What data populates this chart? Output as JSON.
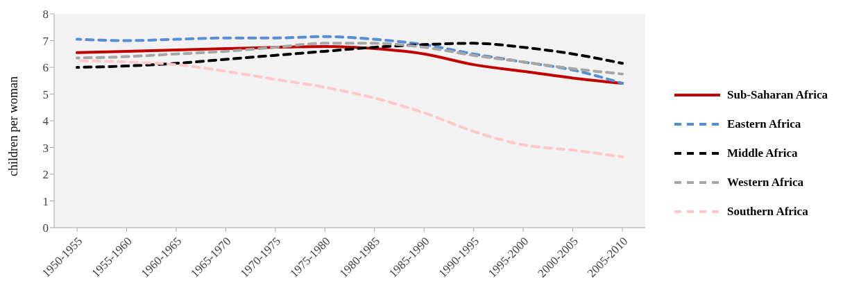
{
  "chart_data": {
    "type": "line",
    "ylabel": "children per woman",
    "categories": [
      "1950-1955",
      "1955-1960",
      "1960-1965",
      "1965-1970",
      "1970-1975",
      "1975-1980",
      "1980-1985",
      "1985-1990",
      "1990-1995",
      "1995-2000",
      "2000-2005",
      "2005-2010"
    ],
    "ylim": [
      0,
      8
    ],
    "yticks": [
      0,
      1,
      2,
      3,
      4,
      5,
      6,
      7,
      8
    ],
    "legend": "right",
    "marker": "none",
    "series": [
      {
        "name": "Sub-Saharan Africa",
        "color": "#c00000",
        "line_style": "solid",
        "values": [
          6.55,
          6.6,
          6.65,
          6.7,
          6.75,
          6.78,
          6.7,
          6.5,
          6.1,
          5.85,
          5.6,
          5.4
        ]
      },
      {
        "name": "Eastern Africa",
        "color": "#558ed5",
        "line_style": "dashed",
        "values": [
          7.05,
          7.0,
          7.05,
          7.1,
          7.1,
          7.15,
          7.05,
          6.85,
          6.5,
          6.2,
          5.9,
          5.4
        ]
      },
      {
        "name": "Middle Africa",
        "color": "#000000",
        "line_style": "dashed",
        "values": [
          6.0,
          6.05,
          6.15,
          6.3,
          6.45,
          6.6,
          6.75,
          6.85,
          6.9,
          6.75,
          6.5,
          6.15
        ]
      },
      {
        "name": "Western Africa",
        "color": "#a6a6a6",
        "line_style": "dashed",
        "values": [
          6.35,
          6.4,
          6.5,
          6.6,
          6.75,
          6.9,
          6.9,
          6.75,
          6.45,
          6.2,
          5.95,
          5.75
        ]
      },
      {
        "name": "Southern Africa",
        "color": "#ffc7c7",
        "line_style": "dashed",
        "values": [
          6.25,
          6.2,
          6.1,
          5.85,
          5.55,
          5.25,
          4.85,
          4.3,
          3.6,
          3.1,
          2.9,
          2.65
        ]
      }
    ]
  }
}
